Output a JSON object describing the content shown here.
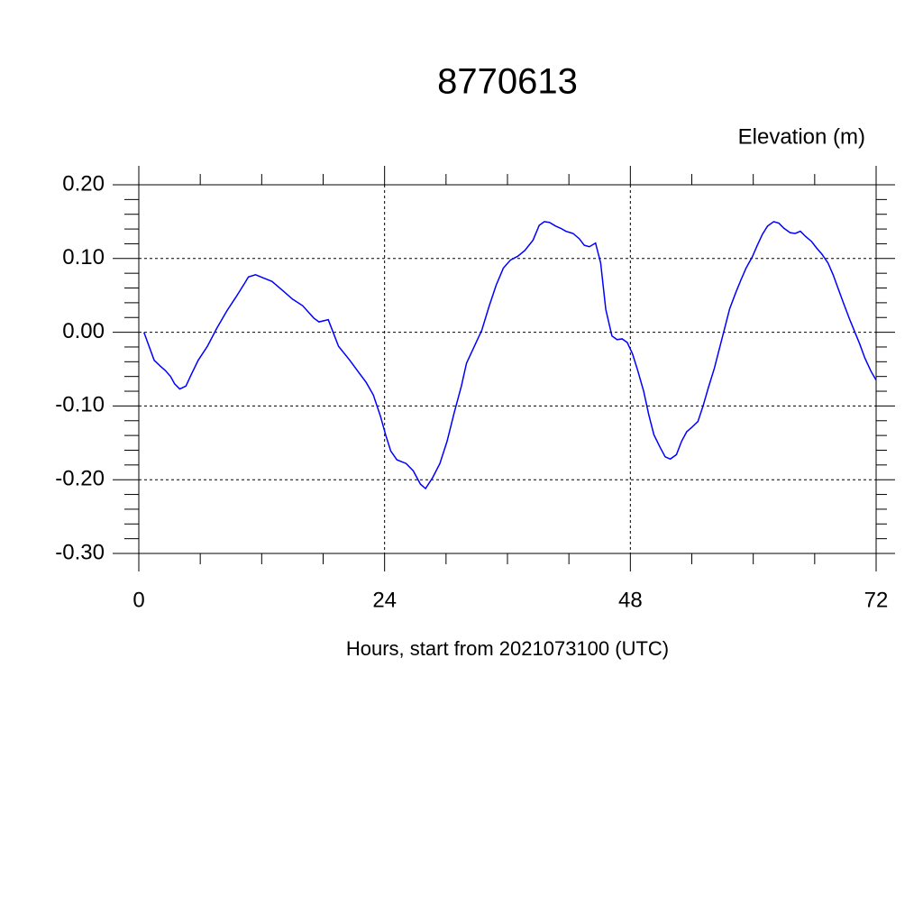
{
  "chart_data": {
    "type": "line",
    "title": "8770613",
    "subtitle": "Elevation (m)",
    "x_label": "Hours, start from 2021073100 (UTC)",
    "xlim": [
      0,
      72
    ],
    "ylim": [
      -0.3,
      0.2
    ],
    "xticks": [
      0,
      24,
      48,
      72
    ],
    "xminorticks": [
      6,
      12,
      18,
      30,
      36,
      42,
      54,
      60,
      66
    ],
    "yticks": [
      {
        "value": -0.3,
        "label": "-0.30"
      },
      {
        "value": -0.2,
        "label": "-0.20"
      },
      {
        "value": -0.1,
        "label": "-0.10"
      },
      {
        "value": 0,
        "label": "0.00"
      },
      {
        "value": 0.1,
        "label": "0.10"
      },
      {
        "value": 0.2,
        "label": "0.20"
      }
    ],
    "yminorticks": [
      -0.28,
      -0.26,
      -0.24,
      -0.22,
      -0.18,
      -0.16,
      -0.14,
      -0.12,
      -0.08,
      -0.06,
      -0.04,
      -0.02,
      0.02,
      0.04,
      0.06,
      0.08,
      0.12,
      0.14,
      0.16,
      0.18
    ],
    "grid": true,
    "x": [
      0.5,
      1.5,
      2.1,
      2.6,
      3.1,
      3.5,
      4.0,
      4.6,
      5.1,
      5.8,
      6.7,
      7.6,
      8.6,
      9.5,
      10.4,
      10.7,
      11.4,
      12.1,
      13.0,
      14.1,
      15.0,
      16.0,
      17.1,
      17.6,
      18.5,
      19.5,
      20.6,
      21.5,
      22.2,
      22.9,
      23.6,
      24.1,
      24.6,
      25.2,
      26.1,
      26.8,
      27.5,
      28.0,
      28.7,
      29.4,
      30.1,
      30.8,
      31.5,
      32.0,
      32.7,
      33.5,
      34.2,
      34.9,
      35.6,
      36.3,
      37.0,
      37.7,
      38.5,
      39.1,
      39.6,
      40.1,
      40.7,
      41.2,
      41.7,
      42.4,
      43.0,
      43.5,
      44.0,
      44.6,
      45.1,
      45.6,
      46.2,
      46.7,
      47.2,
      47.7,
      48.2,
      48.7,
      49.3,
      49.8,
      50.3,
      50.9,
      51.4,
      51.9,
      52.5,
      53.0,
      53.5,
      54.0,
      54.6,
      55.1,
      55.6,
      56.2,
      56.7,
      57.2,
      57.7,
      58.3,
      58.8,
      59.3,
      59.9,
      60.4,
      60.9,
      61.4,
      62.0,
      62.5,
      63.0,
      63.6,
      64.1,
      64.6,
      65.1,
      65.7,
      66.2,
      66.7,
      67.3,
      67.8,
      68.3,
      68.8,
      69.4,
      69.9,
      70.4,
      70.9,
      71.5,
      72.0
    ],
    "series": [
      {
        "color": "#0000ff",
        "values": [
          0.0,
          -0.038,
          -0.046,
          -0.052,
          -0.06,
          -0.07,
          -0.077,
          -0.073,
          -0.058,
          -0.038,
          -0.019,
          0.005,
          0.029,
          0.048,
          0.068,
          0.075,
          0.078,
          0.074,
          0.069,
          0.056,
          0.045,
          0.036,
          0.019,
          0.014,
          0.017,
          -0.019,
          -0.038,
          -0.055,
          -0.068,
          -0.085,
          -0.114,
          -0.139,
          -0.161,
          -0.173,
          -0.178,
          -0.188,
          -0.206,
          -0.212,
          -0.197,
          -0.178,
          -0.148,
          -0.109,
          -0.073,
          -0.042,
          -0.021,
          0.003,
          0.035,
          0.064,
          0.087,
          0.098,
          0.103,
          0.111,
          0.125,
          0.145,
          0.15,
          0.149,
          0.144,
          0.141,
          0.137,
          0.134,
          0.127,
          0.118,
          0.116,
          0.121,
          0.094,
          0.031,
          -0.005,
          -0.01,
          -0.009,
          -0.014,
          -0.029,
          -0.051,
          -0.08,
          -0.112,
          -0.139,
          -0.156,
          -0.169,
          -0.172,
          -0.166,
          -0.148,
          -0.135,
          -0.129,
          -0.121,
          -0.1,
          -0.076,
          -0.049,
          -0.022,
          0.005,
          0.032,
          0.054,
          0.071,
          0.087,
          0.102,
          0.118,
          0.133,
          0.144,
          0.15,
          0.148,
          0.141,
          0.135,
          0.134,
          0.137,
          0.13,
          0.123,
          0.114,
          0.106,
          0.094,
          0.078,
          0.059,
          0.04,
          0.018,
          0.001,
          -0.016,
          -0.035,
          -0.053,
          -0.065
        ]
      }
    ]
  }
}
